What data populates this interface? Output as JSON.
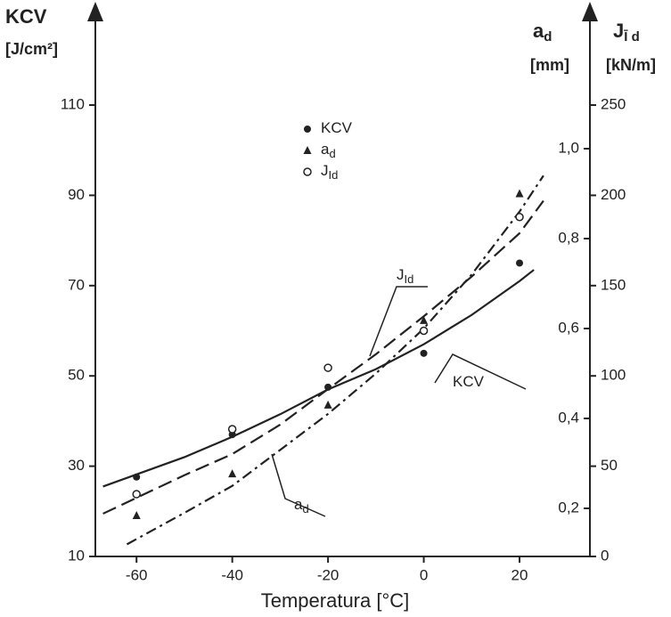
{
  "chart_data": {
    "type": "scatter",
    "x_label": "Temperatura [°C]",
    "y_label": "KCV",
    "y_unit": "[J/cm²]",
    "y2_label": "a",
    "y2_label_sub": "d",
    "y2_unit": "[mm]",
    "y3_label": "J",
    "y3_label_sub": "Ī d",
    "y3_unit": "[kN/m]",
    "xlim": [
      -68.6,
      34.7
    ],
    "xticks": [
      -60,
      -40,
      -20,
      0,
      20
    ],
    "ylim": [
      10,
      110
    ],
    "yticks": [
      10,
      30,
      50,
      70,
      90,
      110
    ],
    "y2lim": [
      0.093,
      1.097
    ],
    "y2ticks": [
      {
        "value": 0.2,
        "label": "0,2"
      },
      {
        "value": 0.4,
        "label": "0,4"
      },
      {
        "value": 0.6,
        "label": "0,6"
      },
      {
        "value": 0.8,
        "label": "0,8"
      },
      {
        "value": 1.0,
        "label": "1,0"
      }
    ],
    "y3lim": [
      0,
      250
    ],
    "y3ticks": [
      0,
      50,
      100,
      150,
      200,
      250
    ],
    "series": [
      {
        "name": "KCV",
        "marker": "dot",
        "color": "#222222",
        "axis": "y",
        "line": "solid",
        "x": [
          -60,
          -40,
          -20,
          0,
          20
        ],
        "values": [
          27.6,
          37,
          47.5,
          55,
          75
        ],
        "fit": {
          "x": [
            -67,
            -50,
            -40,
            -30,
            -20,
            -10,
            0,
            10,
            20,
            23
          ],
          "values": [
            25.5,
            32,
            36.5,
            41.5,
            47,
            51.5,
            57,
            63.5,
            71,
            73.5
          ]
        }
      },
      {
        "name": "a",
        "name_sub": "d",
        "marker": "triangle",
        "color": "#222222",
        "axis": "y2",
        "line": "dashdot",
        "x": [
          -60,
          -40,
          -20,
          0,
          20
        ],
        "values": [
          0.184,
          0.277,
          0.43,
          0.618,
          0.9
        ],
        "fit": {
          "x": [
            -62,
            -50,
            -40,
            -30,
            -20,
            -10,
            0,
            10,
            20,
            25
          ],
          "values": [
            0.12,
            0.19,
            0.25,
            0.33,
            0.41,
            0.5,
            0.6,
            0.72,
            0.86,
            0.94
          ]
        }
      },
      {
        "name": "J",
        "name_sub": "Id",
        "marker": "circle",
        "color": "#222222",
        "axis": "y3",
        "line": "dash",
        "x": [
          -60,
          -40,
          -20,
          0,
          20
        ],
        "values": [
          34.5,
          70.5,
          104.5,
          125,
          188
        ],
        "fit": {
          "x": [
            -67,
            -50,
            -40,
            -30,
            -20,
            -10,
            0,
            10,
            20,
            25
          ],
          "values": [
            23.7,
            45,
            56.7,
            73,
            92.7,
            112,
            133,
            155,
            179,
            197
          ]
        }
      }
    ]
  }
}
